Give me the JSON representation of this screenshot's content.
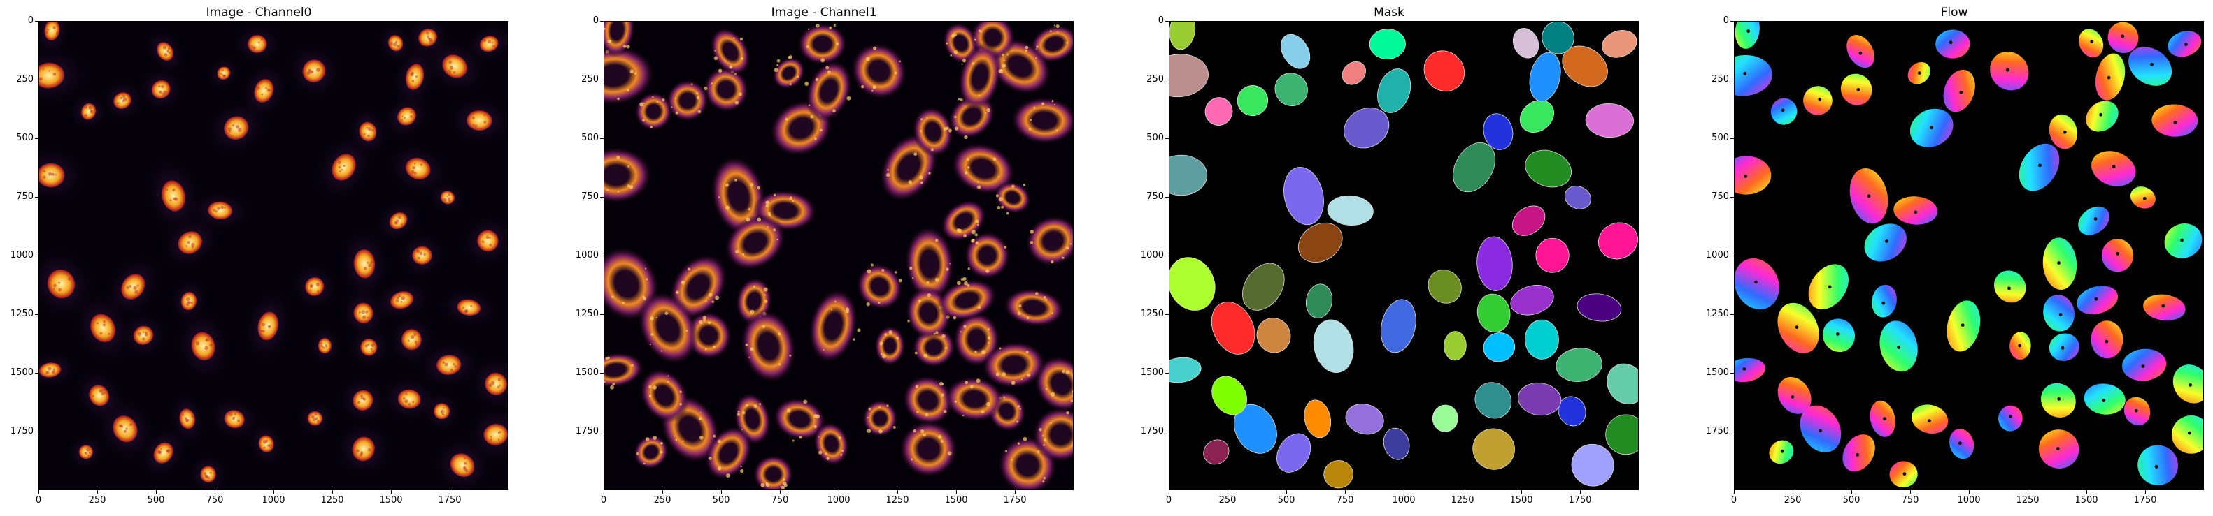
{
  "figure": {
    "panels": [
      {
        "title": "Image - Channel0",
        "kind": "nuclei"
      },
      {
        "title": "Image - Channel1",
        "kind": "cytoplasm"
      },
      {
        "title": "Mask",
        "kind": "mask"
      },
      {
        "title": "Flow",
        "kind": "flow"
      }
    ],
    "x_ticks": [
      "0",
      "250",
      "500",
      "750",
      "1000",
      "1250",
      "1500",
      "1750"
    ],
    "y_ticks": [
      "0",
      "250",
      "500",
      "750",
      "1000",
      "1250",
      "1500",
      "1750"
    ],
    "axis_range": [
      0,
      2000
    ],
    "tick_values": [
      0,
      250,
      500,
      750,
      1000,
      1250,
      1500,
      1750
    ]
  },
  "colors": {
    "background": "#000000",
    "nucleus_core": "#fff3a8",
    "nucleus_mid": "#f5a623",
    "nucleus_edge": "#b5261e",
    "cytoplasm_glow": "#7b1f63",
    "cytoplasm_bright": "#f08a24"
  },
  "mask_colors": [
    "#2e8b57",
    "#1e90ff",
    "#39e75f",
    "#2233dd",
    "#7b68ee",
    "#ff1493",
    "#228b22",
    "#ff2a2a",
    "#b0e0e6",
    "#3cb371",
    "#6a5acd",
    "#9acd32",
    "#da70d6",
    "#00ced1",
    "#556b2f",
    "#8b2252",
    "#ff8c00",
    "#5f9ea0",
    "#98fb98",
    "#4169e1",
    "#cd853f",
    "#8a2be2",
    "#20b2aa",
    "#f08080",
    "#00bfff",
    "#b8860b",
    "#d8bfd8",
    "#32cd32",
    "#4b0082",
    "#e9967a",
    "#66cdaa",
    "#9932cc",
    "#7fff00",
    "#c71585",
    "#87ceeb",
    "#bc8f8f",
    "#00fa9a",
    "#9370db",
    "#6b8e23",
    "#ff69b4",
    "#3d3d9e",
    "#2f8f8f",
    "#d2691e",
    "#adff2f",
    "#8b4513",
    "#a0a0ff",
    "#48d1cc",
    "#c0a030",
    "#7a3bb0",
    "#008080"
  ]
}
